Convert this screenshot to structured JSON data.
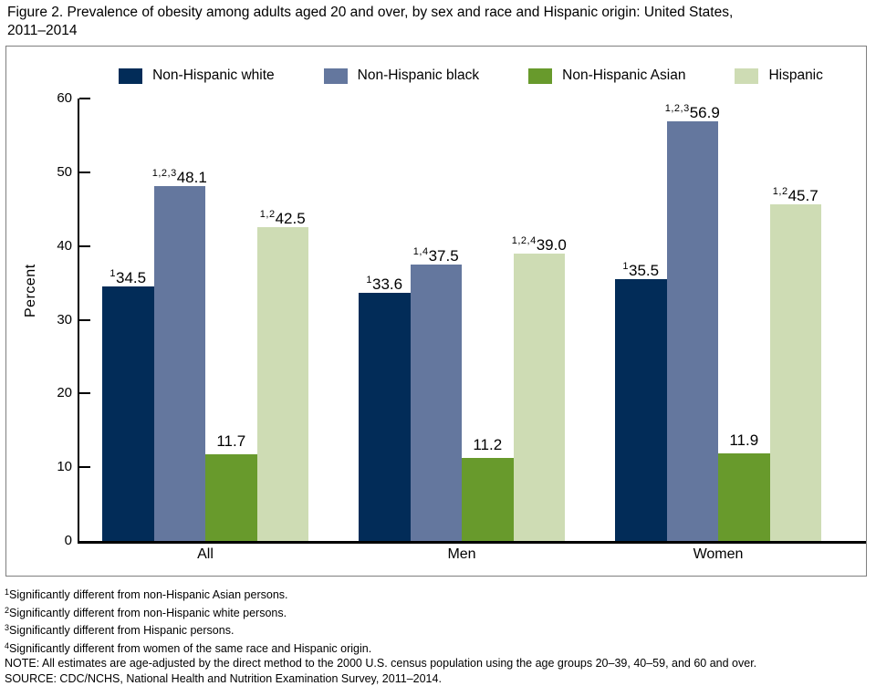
{
  "title": {
    "line1": "Figure 2. Prevalence of obesity among adults aged 20 and over, by sex and race and Hispanic origin: United States,",
    "line2": "2011–2014"
  },
  "chart_data": {
    "type": "bar",
    "categories": [
      "All",
      "Men",
      "Women"
    ],
    "series": [
      {
        "name": "Non-Hispanic white",
        "color": "#022c58",
        "values": [
          34.5,
          33.6,
          35.5
        ],
        "labels": [
          "34.5",
          "33.6",
          "35.5"
        ],
        "superscripts": [
          "1",
          "1",
          "1"
        ]
      },
      {
        "name": "Non-Hispanic black",
        "color": "#64779e",
        "values": [
          48.1,
          37.5,
          56.9
        ],
        "labels": [
          "48.1",
          "37.5",
          "56.9"
        ],
        "superscripts": [
          "1,2,3",
          "1,4",
          "1,2,3"
        ]
      },
      {
        "name": "Non-Hispanic Asian",
        "color": "#689a2c",
        "values": [
          11.7,
          11.2,
          11.9
        ],
        "labels": [
          "11.7",
          "11.2",
          "11.9"
        ],
        "superscripts": [
          "",
          "",
          ""
        ]
      },
      {
        "name": "Hispanic",
        "color": "#cedcb4",
        "values": [
          42.5,
          39.0,
          45.7
        ],
        "labels": [
          "42.5",
          "39.0",
          "45.7"
        ],
        "superscripts": [
          "1,2",
          "1,2,4",
          "1,2"
        ]
      }
    ],
    "ylabel": "Percent",
    "ylim": [
      0,
      60
    ],
    "ytick_interval": 10,
    "yticks": [
      0,
      10,
      20,
      30,
      40,
      50,
      60
    ],
    "grid": false,
    "legend_position": "top"
  },
  "footnotes": [
    {
      "sup": "1",
      "text": "Significantly different from non-Hispanic Asian persons."
    },
    {
      "sup": "2",
      "text": "Significantly different from non-Hispanic white persons."
    },
    {
      "sup": "3",
      "text": "Significantly different from Hispanic persons."
    },
    {
      "sup": "4",
      "text": "Significantly different from women of the same race and Hispanic origin."
    },
    {
      "sup": "",
      "text": "NOTE: All estimates are age-adjusted by the direct method to the 2000 U.S. census population using the age groups 20–39, 40–59, and 60 and over."
    },
    {
      "sup": "",
      "text": "SOURCE: CDC/NCHS, National Health and Nutrition Examination Survey, 2011–2014."
    }
  ]
}
